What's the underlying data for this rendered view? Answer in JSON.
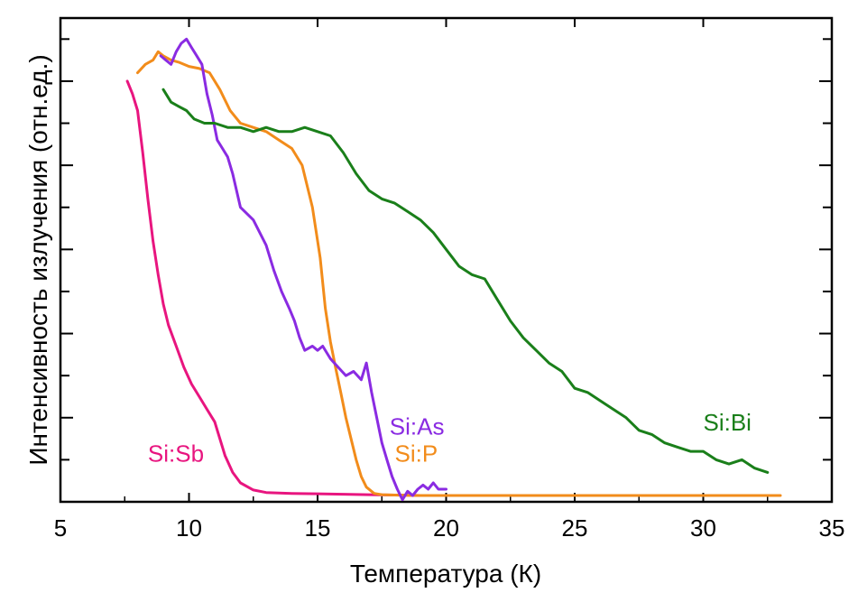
{
  "chart_data": {
    "type": "line",
    "title": "",
    "xlabel": "Температура (К)",
    "ylabel": "Интенсивность излучения (отн.ед.)",
    "xlim": [
      5,
      35
    ],
    "ylim": [
      0,
      1.15
    ],
    "x_ticks": [
      5,
      10,
      15,
      20,
      25,
      30,
      35
    ],
    "y_ticks_unlabeled": [
      0.1,
      0.2,
      0.3,
      0.4,
      0.5,
      0.6,
      0.7,
      0.8,
      0.9,
      1.0,
      1.1
    ],
    "grid": false,
    "legend": "none (series labeled inline)",
    "series": [
      {
        "name": "Si:Sb",
        "color": "#e8157f",
        "x": [
          7.6,
          7.8,
          8.0,
          8.2,
          8.4,
          8.6,
          8.8,
          9.0,
          9.2,
          9.5,
          9.8,
          10.1,
          10.4,
          10.7,
          11.0,
          11.2,
          11.4,
          11.7,
          12.0,
          12.5,
          13.0,
          14.0,
          15.0,
          16.0,
          17.0,
          18.0,
          19.0,
          20.0
        ],
        "y": [
          1.0,
          0.97,
          0.93,
          0.83,
          0.72,
          0.62,
          0.54,
          0.47,
          0.42,
          0.37,
          0.32,
          0.28,
          0.25,
          0.22,
          0.19,
          0.15,
          0.11,
          0.07,
          0.045,
          0.028,
          0.022,
          0.02,
          0.019,
          0.018,
          0.017,
          0.016,
          0.015,
          0.015
        ]
      },
      {
        "name": "Si:P",
        "color": "#f28c1b",
        "x": [
          8.0,
          8.3,
          8.6,
          8.8,
          9.0,
          9.3,
          9.6,
          10.0,
          10.4,
          10.8,
          11.2,
          11.6,
          12.0,
          12.5,
          13.0,
          13.5,
          14.0,
          14.4,
          14.8,
          15.1,
          15.3,
          15.5,
          15.7,
          15.9,
          16.1,
          16.3,
          16.5,
          16.7,
          16.9,
          17.2,
          17.5,
          18.0,
          19.0,
          20.0,
          22.0,
          25.0,
          28.0,
          31.0,
          33.0
        ],
        "y": [
          1.02,
          1.04,
          1.05,
          1.07,
          1.06,
          1.05,
          1.045,
          1.035,
          1.03,
          1.02,
          0.98,
          0.93,
          0.9,
          0.89,
          0.88,
          0.86,
          0.84,
          0.8,
          0.7,
          0.58,
          0.46,
          0.38,
          0.32,
          0.26,
          0.2,
          0.15,
          0.1,
          0.06,
          0.035,
          0.02,
          0.017,
          0.016,
          0.015,
          0.015,
          0.015,
          0.015,
          0.015,
          0.015,
          0.015
        ]
      },
      {
        "name": "Si:As",
        "color": "#8a2be2",
        "x": [
          8.9,
          9.1,
          9.3,
          9.5,
          9.7,
          9.9,
          10.1,
          10.3,
          10.5,
          10.7,
          10.9,
          11.1,
          11.3,
          11.5,
          11.7,
          12.0,
          12.5,
          13.0,
          13.3,
          13.6,
          13.9,
          14.1,
          14.3,
          14.5,
          14.8,
          15.0,
          15.2,
          15.5,
          15.8,
          16.1,
          16.4,
          16.7,
          16.9,
          17.1,
          17.3,
          17.5,
          17.7,
          17.9,
          18.1,
          18.3,
          18.5,
          18.7,
          18.9,
          19.1,
          19.3,
          19.5,
          19.7,
          20.0
        ],
        "y": [
          1.06,
          1.05,
          1.04,
          1.07,
          1.09,
          1.1,
          1.08,
          1.06,
          1.04,
          0.97,
          0.92,
          0.86,
          0.84,
          0.82,
          0.78,
          0.7,
          0.67,
          0.61,
          0.55,
          0.5,
          0.46,
          0.43,
          0.39,
          0.36,
          0.37,
          0.36,
          0.37,
          0.34,
          0.32,
          0.3,
          0.31,
          0.29,
          0.33,
          0.26,
          0.2,
          0.14,
          0.1,
          0.06,
          0.03,
          0.005,
          0.025,
          0.015,
          0.03,
          0.04,
          0.03,
          0.045,
          0.03,
          0.03
        ]
      },
      {
        "name": "Si:Bi",
        "color": "#1a7f1a",
        "x": [
          9.0,
          9.3,
          9.6,
          9.9,
          10.2,
          10.6,
          11.0,
          11.5,
          12.0,
          12.5,
          13.0,
          13.5,
          14.0,
          14.5,
          15.0,
          15.5,
          16.0,
          16.5,
          17.0,
          17.5,
          18.0,
          18.5,
          19.0,
          19.5,
          20.0,
          20.5,
          21.0,
          21.5,
          22.0,
          22.5,
          23.0,
          23.5,
          24.0,
          24.5,
          25.0,
          25.5,
          26.0,
          26.5,
          27.0,
          27.5,
          28.0,
          28.5,
          29.0,
          29.5,
          30.0,
          30.5,
          31.0,
          31.5,
          32.0,
          32.5
        ],
        "y": [
          0.98,
          0.95,
          0.94,
          0.93,
          0.91,
          0.9,
          0.9,
          0.89,
          0.89,
          0.88,
          0.89,
          0.88,
          0.88,
          0.89,
          0.88,
          0.87,
          0.83,
          0.78,
          0.74,
          0.72,
          0.71,
          0.69,
          0.67,
          0.64,
          0.6,
          0.56,
          0.54,
          0.53,
          0.48,
          0.43,
          0.39,
          0.36,
          0.33,
          0.31,
          0.27,
          0.26,
          0.24,
          0.22,
          0.2,
          0.17,
          0.16,
          0.14,
          0.13,
          0.12,
          0.12,
          0.1,
          0.09,
          0.1,
          0.08,
          0.07
        ]
      }
    ]
  }
}
